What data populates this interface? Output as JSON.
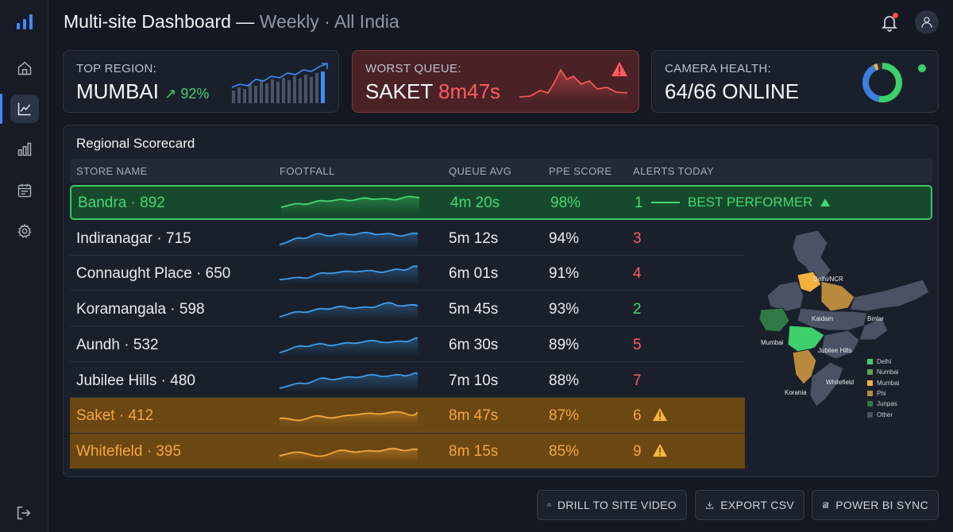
{
  "header": {
    "title": "Multi-site Dashboard —",
    "subtitle": "Weekly · All India"
  },
  "sidebar": {
    "icons": [
      "bar-chart-logo-icon",
      "home-icon",
      "trend-chart-icon",
      "bar-chart-icon",
      "calendar-icon",
      "gear-icon",
      "logout-icon"
    ],
    "active_index": 2
  },
  "kpis": {
    "top_region": {
      "label": "TOP REGION:",
      "value": "MUMBAI",
      "change": "↗ 92%"
    },
    "worst_queue": {
      "label": "WORST QUEUE:",
      "store": "SAKET",
      "time": "8m47s"
    },
    "camera_health": {
      "label": "CAMERA HEALTH:",
      "value": "64/66 ONLINE",
      "online": 64,
      "total": 66
    }
  },
  "scorecard": {
    "title": "Regional Scorecard",
    "columns": [
      "STORE NAME",
      "FOOTFALL",
      "QUEUE AVG",
      "PPE SCORE",
      "ALERTS TODAY"
    ],
    "best_tag": "BEST PERFORMER",
    "rows": [
      {
        "name": "Bandra · 892",
        "queue": "4m 20s",
        "ppe": "98%",
        "alerts": "1",
        "status": "best"
      },
      {
        "name": "Indiranagar · 715",
        "queue": "5m 12s",
        "ppe": "94%",
        "alerts": "3",
        "status": "normal"
      },
      {
        "name": "Connaught Place · 650",
        "queue": "6m 01s",
        "ppe": "91%",
        "alerts": "4",
        "status": "normal"
      },
      {
        "name": "Koramangala · 598",
        "queue": "5m 45s",
        "ppe": "93%",
        "alerts": "2",
        "status": "normal"
      },
      {
        "name": "Aundh · 532",
        "queue": "6m 30s",
        "ppe": "89%",
        "alerts": "5",
        "status": "normal"
      },
      {
        "name": "Jubilee Hills · 480",
        "queue": "7m 10s",
        "ppe": "88%",
        "alerts": "7",
        "status": "normal"
      },
      {
        "name": "Saket · 412",
        "queue": "8m 47s",
        "ppe": "87%",
        "alerts": "6",
        "status": "caution"
      },
      {
        "name": "Whitefield · 395",
        "queue": "8m 15s",
        "ppe": "85%",
        "alerts": "9",
        "status": "caution"
      }
    ]
  },
  "map": {
    "labels": [
      "Delhi/NCR",
      "Kaidam",
      "Bmlar",
      "Mumbai",
      "Jubilee Hills",
      "Whitefield",
      "Korania"
    ],
    "legend": [
      {
        "name": "Delhi",
        "color": "#3ccf6b"
      },
      {
        "name": "Numbai",
        "color": "#5fa35a"
      },
      {
        "name": "Mumbai",
        "color": "#f2b13d"
      },
      {
        "name": "Phi",
        "color": "#b98a3c"
      },
      {
        "name": "Junpas",
        "color": "#2f7a44"
      },
      {
        "name": "Other",
        "color": "#4a5263"
      }
    ]
  },
  "footer": {
    "drill": "DRILL TO SITE VIDEO",
    "export": "EXPORT CSV",
    "powerbi": "POWER BI SYNC"
  },
  "colors": {
    "accent": "#3d8bff",
    "good": "#43d873",
    "bad": "#ff5a5f",
    "caution": "#f5a73b"
  }
}
